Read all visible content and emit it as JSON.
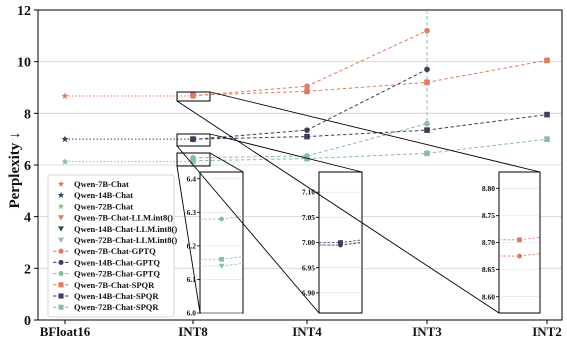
{
  "chart_data": {
    "type": "line",
    "ylabel": "Perplexity ↓",
    "categories": [
      "BFloat16",
      "INT8",
      "INT4",
      "INT3",
      "INT2"
    ],
    "ylim": [
      0,
      12
    ],
    "yticks": [
      "0",
      "2",
      "4",
      "6",
      "8",
      "10",
      "12"
    ],
    "grid": "horizontal",
    "legend_position": "lower-left",
    "colors": {
      "7B": "#E07B61",
      "14B": "#3B3F5C",
      "72B": "#86BFA5"
    },
    "series": [
      {
        "name": "Qwen-7B-Chat",
        "group": "7B",
        "marker": "star",
        "style": "dotted",
        "values": [
          8.67,
          8.67,
          null,
          null,
          null
        ]
      },
      {
        "name": "Qwen-14B-Chat",
        "group": "14B",
        "marker": "star",
        "style": "dotted",
        "values": [
          7.0,
          7.0,
          null,
          null,
          null
        ]
      },
      {
        "name": "Qwen-72B-Chat",
        "group": "72B",
        "marker": "star",
        "style": "dotted",
        "values": [
          6.13,
          6.13,
          null,
          null,
          null
        ]
      },
      {
        "name": "Qwen-7B-Chat-LLM.int8()",
        "group": "7B",
        "marker": "triangle",
        "style": "none",
        "values": [
          null,
          8.67,
          null,
          null,
          null
        ]
      },
      {
        "name": "Qwen-14B-Chat-LLM.int8()",
        "group": "14B",
        "marker": "triangle",
        "style": "none",
        "values": [
          null,
          7.0,
          null,
          null,
          null
        ]
      },
      {
        "name": "Qwen-72B-Chat-LLM.int8()",
        "group": "72B",
        "marker": "triangle",
        "style": "none",
        "values": [
          null,
          6.14,
          null,
          null,
          null
        ]
      },
      {
        "name": "Qwen-7B-Chat-GPTQ",
        "group": "7B",
        "marker": "circle",
        "style": "dashed",
        "values": [
          null,
          8.68,
          9.05,
          11.2,
          null
        ]
      },
      {
        "name": "Qwen-14B-Chat-GPTQ",
        "group": "14B",
        "marker": "circle",
        "style": "dashed",
        "values": [
          null,
          6.99,
          7.35,
          9.7,
          null
        ]
      },
      {
        "name": "Qwen-72B-Chat-GPTQ",
        "group": "72B",
        "marker": "circle",
        "style": "dashed",
        "values": [
          null,
          6.28,
          6.35,
          7.6,
          null
        ]
      },
      {
        "name": "Qwen-7B-Chat-SPQR",
        "group": "7B",
        "marker": "square",
        "style": "dashed",
        "values": [
          null,
          8.7,
          8.85,
          9.2,
          10.05
        ]
      },
      {
        "name": "Qwen-14B-Chat-SPQR",
        "group": "14B",
        "marker": "square",
        "style": "dashed",
        "values": [
          null,
          7.0,
          7.1,
          7.35,
          7.95
        ]
      },
      {
        "name": "Qwen-72B-Chat-SPQR",
        "group": "72B",
        "marker": "square",
        "style": "dashed",
        "values": [
          null,
          6.16,
          6.25,
          6.45,
          7.0
        ]
      }
    ],
    "insets": [
      {
        "target": "INT8 / 72B",
        "ylim": [
          6.0,
          6.42
        ],
        "yticks": [
          "6.0",
          "6.1",
          "6.2",
          "6.3",
          "6.4"
        ],
        "points": [
          {
            "series": "Qwen-72B-Chat-GPTQ",
            "value": 6.28
          },
          {
            "series": "Qwen-72B-Chat-SPQR",
            "value": 6.16
          },
          {
            "series": "Qwen-72B-Chat-LLM.int8()",
            "value": 6.14
          }
        ]
      },
      {
        "target": "INT8 / 14B",
        "ylim": [
          6.86,
          7.14
        ],
        "yticks": [
          "6.90",
          "6.95",
          "7.00",
          "7.05",
          "7.10"
        ],
        "points": [
          {
            "series": "Qwen-14B-Chat-SPQR",
            "value": 7.0
          },
          {
            "series": "Qwen-14B-Chat-GPTQ",
            "value": 6.995
          },
          {
            "series": "Qwen-14B-Chat-LLM.int8()",
            "value": 6.995
          }
        ]
      },
      {
        "target": "INT8 / 7B",
        "ylim": [
          8.57,
          8.83
        ],
        "yticks": [
          "8.60",
          "8.65",
          "8.70",
          "8.75",
          "8.80"
        ],
        "points": [
          {
            "series": "Qwen-7B-Chat-SPQR",
            "value": 8.705
          },
          {
            "series": "Qwen-7B-Chat-GPTQ",
            "value": 8.675
          }
        ]
      }
    ]
  }
}
